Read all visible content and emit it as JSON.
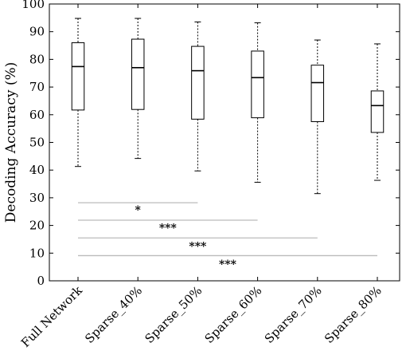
{
  "chart_data": {
    "type": "box",
    "ylabel": "Decoding Accuracy (%)",
    "xlabel": "",
    "ylim": [
      0,
      100
    ],
    "yticks": [
      0,
      10,
      20,
      30,
      40,
      50,
      60,
      70,
      80,
      90,
      100
    ],
    "grid": false,
    "categories": [
      "Full Network",
      "Sparse_40%",
      "Sparse_50%",
      "Sparse_60%",
      "Sparse_70%",
      "Sparse_80%"
    ],
    "boxes": [
      {
        "category": "Full Network",
        "whisker_low": 41.3,
        "q1": 61.7,
        "median": 77.4,
        "q3": 86.0,
        "whisker_high": 94.8
      },
      {
        "category": "Sparse_40%",
        "whisker_low": 44.2,
        "q1": 61.9,
        "median": 77.0,
        "q3": 87.3,
        "whisker_high": 94.8
      },
      {
        "category": "Sparse_50%",
        "whisker_low": 39.7,
        "q1": 58.4,
        "median": 75.9,
        "q3": 84.7,
        "whisker_high": 93.5
      },
      {
        "category": "Sparse_60%",
        "whisker_low": 35.6,
        "q1": 58.9,
        "median": 73.4,
        "q3": 83.0,
        "whisker_high": 93.2
      },
      {
        "category": "Sparse_70%",
        "whisker_low": 31.5,
        "q1": 57.5,
        "median": 71.6,
        "q3": 77.9,
        "whisker_high": 87.0
      },
      {
        "category": "Sparse_80%",
        "whisker_low": 36.3,
        "q1": 53.6,
        "median": 63.3,
        "q3": 68.6,
        "whisker_high": 85.6
      }
    ],
    "significance": [
      {
        "from": "Full Network",
        "to": "Sparse_50%",
        "y": 28.2,
        "label": "*",
        "label_y": 25.6
      },
      {
        "from": "Full Network",
        "to": "Sparse_60%",
        "y": 21.9,
        "label": "***",
        "label_y": 19.1
      },
      {
        "from": "Full Network",
        "to": "Sparse_70%",
        "y": 15.5,
        "label": "***",
        "label_y": 12.6
      },
      {
        "from": "Full Network",
        "to": "Sparse_80%",
        "y": 9.1,
        "label": "***",
        "label_y": 6.0
      }
    ]
  }
}
